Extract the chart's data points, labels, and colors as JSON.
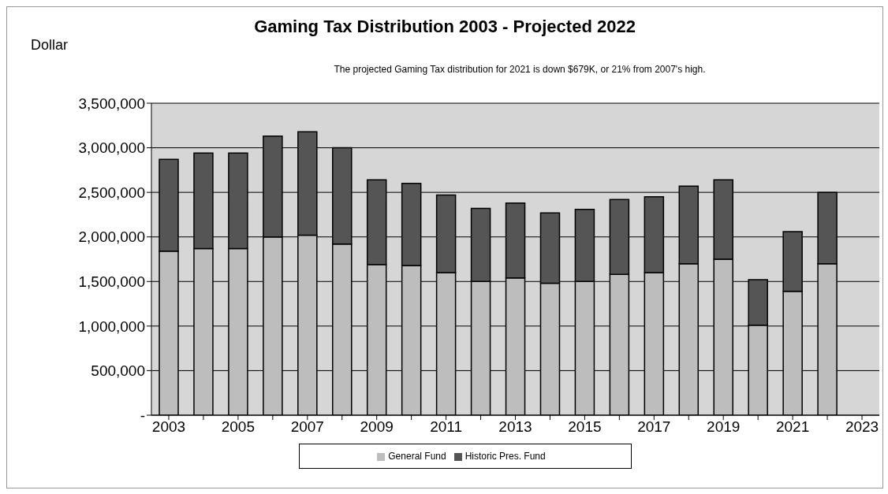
{
  "chart_data": {
    "type": "bar",
    "title": "Gaming Tax Distribution 2003 - Projected 2022",
    "subtitle": "The projected Gaming Tax distribution for 2021 is down $679K, or 21% from 2007's high.",
    "ylabel": "Dollar",
    "categories": [
      "2003",
      null,
      "2005",
      null,
      "2007",
      null,
      "2009",
      null,
      "2011",
      null,
      "2013",
      null,
      "2015",
      null,
      "2017",
      null,
      "2019",
      null,
      "2021",
      null,
      "2023"
    ],
    "series": [
      {
        "name": "General Fund",
        "color": "#bdbdbd",
        "values": [
          1840000,
          1870000,
          1870000,
          2000000,
          2020000,
          1920000,
          1690000,
          1680000,
          1600000,
          1500000,
          1540000,
          1480000,
          1500000,
          1580000,
          1600000,
          1700000,
          1750000,
          1010000,
          1390000,
          1700000,
          null
        ]
      },
      {
        "name": "Historic Pres. Fund",
        "color": "#555555",
        "values": [
          1030000,
          1070000,
          1070000,
          1130000,
          1160000,
          1080000,
          950000,
          920000,
          870000,
          820000,
          840000,
          790000,
          810000,
          840000,
          850000,
          870000,
          890000,
          510000,
          670000,
          800000,
          null
        ]
      }
    ],
    "stacked": true,
    "ylim": [
      0,
      3500000
    ],
    "yticks": [
      {
        "value": 0,
        "label": "-"
      },
      {
        "value": 500000,
        "label": "500,000"
      },
      {
        "value": 1000000,
        "label": "1,000,000"
      },
      {
        "value": 1500000,
        "label": "1,500,000"
      },
      {
        "value": 2000000,
        "label": "2,000,000"
      },
      {
        "value": 2500000,
        "label": "2,500,000"
      },
      {
        "value": 3000000,
        "label": "3,000,000"
      },
      {
        "value": 3500000,
        "label": "3,500,000"
      }
    ],
    "grid": "y",
    "legend": "bottom"
  }
}
